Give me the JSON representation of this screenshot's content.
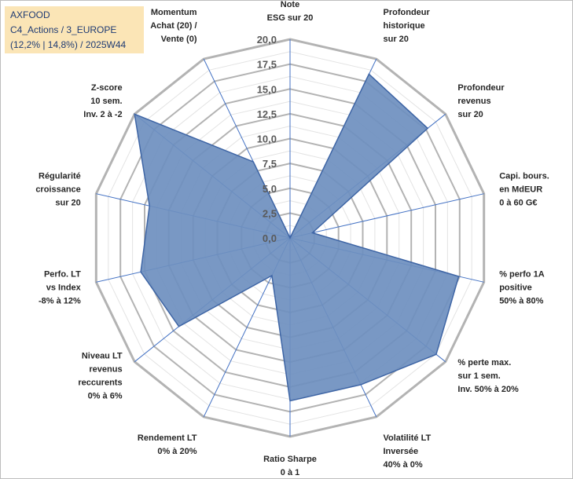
{
  "info": {
    "company": "AXFOOD",
    "category": "C4_Actions / 3_EUROPE",
    "stats": "(12,2% | 14,8%) / 2025W44"
  },
  "colors": {
    "fill": "#6e8fbf",
    "stroke": "#3e65a5",
    "grid": "#bfbfbf",
    "spoke": "#4472c4",
    "infobox": "#fbe5b6"
  },
  "chart_data": {
    "type": "radar",
    "title": "",
    "rmin": 0,
    "rmax": 20,
    "tick_step": 2.5,
    "tick_labels": [
      "0,0",
      "2,5",
      "5,0",
      "7,5",
      "10,0",
      "12,5",
      "15,0",
      "17,5",
      "20,0"
    ],
    "axes": [
      {
        "label": [
          "Note",
          "ESG sur 20"
        ],
        "value": 0
      },
      {
        "label": [
          "Profondeur",
          "historique",
          "sur 20"
        ],
        "value": 18.3
      },
      {
        "label": [
          "Profondeur",
          "revenus",
          "sur 20"
        ],
        "value": 17.7
      },
      {
        "label": [
          "Capi. bours.",
          "en MdEUR",
          "0 à 60 G€"
        ],
        "value": 2.3
      },
      {
        "label": [
          "% perfo 1A",
          "positive",
          "50% à 80%"
        ],
        "value": 17.4
      },
      {
        "label": [
          "% perte max.",
          "sur 1 sem.",
          "Inv. 50% à 20%"
        ],
        "value": 18.8
      },
      {
        "label": [
          "Volatilité LT",
          "Inversée",
          "40% à 0%"
        ],
        "value": 16.4
      },
      {
        "label": [
          "Ratio Sharpe",
          "0 à 1"
        ],
        "value": 16.4
      },
      {
        "label": [
          "Rendement LT",
          "0% à 20%"
        ],
        "value": 4.2
      },
      {
        "label": [
          "Niveau LT",
          "revenus",
          "reccurents",
          "0% à 6%"
        ],
        "value": 14.3
      },
      {
        "label": [
          "Perfo. LT",
          "vs Index",
          "-8% à 12%"
        ],
        "value": 15.4
      },
      {
        "label": [
          "Régularité",
          "croissance",
          "sur 20"
        ],
        "value": 14.5
      },
      {
        "label": [
          "Z-score",
          "10 sem.",
          "Inv. 2 à -2"
        ],
        "value": 20
      },
      {
        "label": [
          "Momentum",
          "Achat (20) /",
          "Vente (0)"
        ],
        "value": 8.5
      }
    ]
  }
}
